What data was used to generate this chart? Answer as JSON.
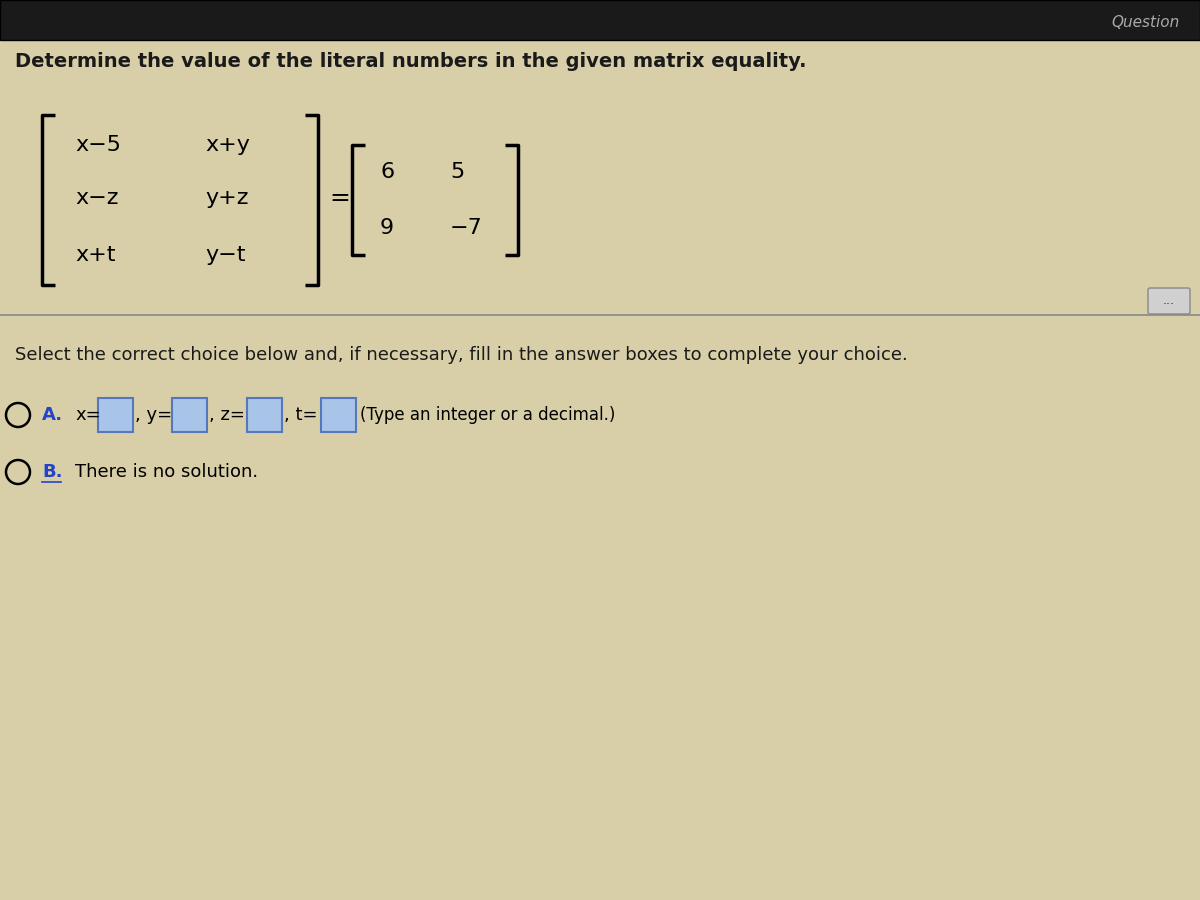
{
  "title": "Determine the value of the literal numbers in the given matrix equality.",
  "bg_color": "#d8cfa8",
  "title_color": "#1a1a1a",
  "title_fontsize": 14,
  "matrix_left": [
    [
      "x−5",
      "x+y"
    ],
    [
      "x−z",
      "y+z"
    ],
    [
      "x+t",
      "y−t"
    ]
  ],
  "matrix_right": [
    [
      "6",
      "5"
    ],
    [
      "9",
      "−7"
    ]
  ],
  "choice_text": "Select the correct choice below and, if necessary, fill in the answer boxes to complete your choice.",
  "choice_A_hint": "(Type an integer or a decimal.)",
  "choice_B_text": "There is no solution.",
  "blue_color": "#2244cc",
  "box_fill": "#a8c4e8",
  "separator_color": "#888888",
  "header_bg": "#1a1a1a"
}
